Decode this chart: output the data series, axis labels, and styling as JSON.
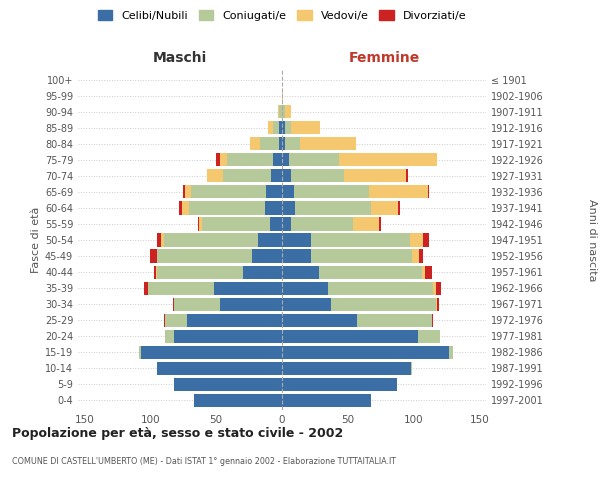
{
  "age_groups": [
    "0-4",
    "5-9",
    "10-14",
    "15-19",
    "20-24",
    "25-29",
    "30-34",
    "35-39",
    "40-44",
    "45-49",
    "50-54",
    "55-59",
    "60-64",
    "65-69",
    "70-74",
    "75-79",
    "80-84",
    "85-89",
    "90-94",
    "95-99",
    "100+"
  ],
  "birth_years": [
    "1997-2001",
    "1992-1996",
    "1987-1991",
    "1982-1986",
    "1977-1981",
    "1972-1976",
    "1967-1971",
    "1962-1966",
    "1957-1961",
    "1952-1956",
    "1947-1951",
    "1942-1946",
    "1937-1941",
    "1932-1936",
    "1927-1931",
    "1922-1926",
    "1917-1921",
    "1912-1916",
    "1907-1911",
    "1902-1906",
    "≤ 1901"
  ],
  "maschi": {
    "celibi": [
      67,
      82,
      95,
      107,
      82,
      72,
      47,
      52,
      30,
      23,
      18,
      9,
      13,
      12,
      8,
      7,
      2,
      2,
      0,
      0,
      0
    ],
    "coniugati": [
      0,
      0,
      0,
      2,
      7,
      17,
      35,
      50,
      65,
      72,
      72,
      52,
      58,
      57,
      37,
      35,
      15,
      5,
      2,
      0,
      0
    ],
    "vedovi": [
      0,
      0,
      0,
      0,
      0,
      0,
      0,
      0,
      1,
      0,
      2,
      2,
      5,
      5,
      12,
      5,
      7,
      4,
      1,
      0,
      0
    ],
    "divorziati": [
      0,
      0,
      0,
      0,
      0,
      1,
      1,
      3,
      1,
      5,
      3,
      1,
      2,
      1,
      0,
      3,
      0,
      0,
      0,
      0,
      0
    ]
  },
  "femmine": {
    "nubili": [
      68,
      87,
      98,
      127,
      103,
      57,
      37,
      35,
      28,
      22,
      22,
      7,
      10,
      9,
      7,
      5,
      2,
      2,
      0,
      0,
      0
    ],
    "coniugate": [
      0,
      0,
      1,
      3,
      17,
      57,
      80,
      80,
      78,
      77,
      75,
      47,
      58,
      57,
      40,
      38,
      12,
      5,
      2,
      0,
      0
    ],
    "vedove": [
      0,
      0,
      0,
      0,
      0,
      0,
      1,
      2,
      3,
      5,
      10,
      20,
      20,
      45,
      47,
      75,
      42,
      22,
      5,
      1,
      0
    ],
    "divorziate": [
      0,
      0,
      0,
      0,
      0,
      1,
      1,
      4,
      5,
      3,
      5,
      1,
      2,
      1,
      2,
      0,
      0,
      0,
      0,
      0,
      0
    ]
  },
  "color_celibi": "#3b6ea5",
  "color_coniugati": "#b5c99a",
  "color_vedovi": "#f5c76e",
  "color_divorziati": "#cc2222",
  "title_main": "Popolazione per età, sesso e stato civile - 2002",
  "title_sub": "COMUNE DI CASTELL'UMBERTO (ME) - Dati ISTAT 1° gennaio 2002 - Elaborazione TUTTAITALIA.IT",
  "xlabel_left": "Maschi",
  "xlabel_right": "Femmine",
  "ylabel_left": "Fasce di età",
  "ylabel_right": "Anni di nascita",
  "xlim": 155,
  "background_color": "#ffffff",
  "grid_color": "#cccccc"
}
